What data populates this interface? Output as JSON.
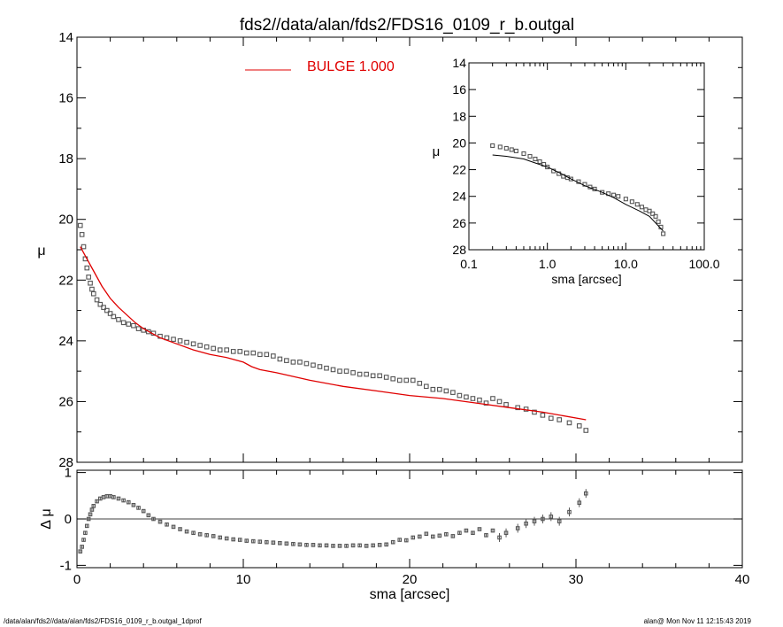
{
  "figure": {
    "title": "fds2//data/alan/fds2/FDS16_0109_r_b.outgal",
    "footer_left": "/data/alan/fds2//data/alan/fds2/FDS16_0109_r_b.outgal_1dprof",
    "footer_right": "alan@  Mon Nov 11 12:15:43 2019"
  },
  "colors": {
    "model": "#e00000",
    "data": "#555555",
    "axis": "#000000",
    "inset_model": "#000000"
  },
  "chart_data": [
    {
      "type": "scatter",
      "id": "main_profile",
      "xlabel": "",
      "ylabel": "μ",
      "xlim": [
        0,
        40
      ],
      "ylim": [
        28,
        14
      ],
      "y_reversed": true,
      "xticks": [
        "0",
        "10",
        "20",
        "30",
        "40"
      ],
      "yticks": [
        "14",
        "16",
        "18",
        "20",
        "22",
        "24",
        "26",
        "28"
      ],
      "legend": {
        "label": "BULGE",
        "value": "1.000",
        "position": "top-center"
      },
      "series": [
        {
          "name": "",
          "kind": "points",
          "x": [
            0.2,
            0.3,
            0.4,
            0.5,
            0.6,
            0.7,
            0.8,
            0.9,
            1.0,
            1.2,
            1.4,
            1.6,
            1.8,
            2.0,
            2.2,
            2.5,
            2.8,
            3.1,
            3.4,
            3.7,
            4.0,
            4.3,
            4.6,
            5.0,
            5.4,
            5.8,
            6.2,
            6.6,
            7.0,
            7.4,
            7.8,
            8.2,
            8.6,
            9.0,
            9.4,
            9.8,
            10.2,
            10.6,
            11.0,
            11.4,
            11.8,
            12.2,
            12.6,
            13.0,
            13.4,
            13.8,
            14.2,
            14.6,
            15.0,
            15.4,
            15.8,
            16.2,
            16.6,
            17.0,
            17.4,
            17.8,
            18.2,
            18.6,
            19.0,
            19.4,
            19.8,
            20.2,
            20.6,
            21.0,
            21.4,
            21.8,
            22.2,
            22.6,
            23.0,
            23.4,
            23.8,
            24.2,
            24.6,
            25.0,
            25.4,
            25.8,
            26.5,
            27.0,
            27.5,
            28.0,
            28.5,
            29.0,
            29.6,
            30.2,
            30.6
          ],
          "y": [
            20.2,
            20.5,
            20.9,
            21.3,
            21.6,
            21.9,
            22.1,
            22.3,
            22.45,
            22.65,
            22.8,
            22.9,
            23.0,
            23.1,
            23.2,
            23.3,
            23.4,
            23.45,
            23.5,
            23.6,
            23.65,
            23.7,
            23.75,
            23.85,
            23.9,
            23.95,
            24.0,
            24.05,
            24.1,
            24.15,
            24.2,
            24.25,
            24.3,
            24.3,
            24.35,
            24.35,
            24.4,
            24.4,
            24.45,
            24.45,
            24.5,
            24.6,
            24.65,
            24.7,
            24.7,
            24.75,
            24.8,
            24.85,
            24.9,
            24.95,
            25.0,
            25.0,
            25.05,
            25.1,
            25.1,
            25.15,
            25.15,
            25.2,
            25.25,
            25.3,
            25.3,
            25.3,
            25.4,
            25.5,
            25.6,
            25.6,
            25.65,
            25.7,
            25.8,
            25.85,
            25.9,
            25.95,
            26.05,
            25.9,
            26.0,
            26.1,
            26.2,
            26.25,
            26.35,
            26.45,
            26.55,
            26.6,
            26.7,
            26.8,
            26.95
          ]
        },
        {
          "name": "BULGE",
          "kind": "line",
          "x": [
            0.2,
            0.5,
            1.0,
            1.5,
            2.0,
            2.5,
            3.0,
            3.5,
            4.0,
            4.5,
            5.0,
            6.0,
            7.0,
            8.0,
            9.0,
            10.0,
            10.5,
            11.0,
            12.0,
            14.0,
            16.0,
            18.0,
            20.0,
            22.0,
            24.0,
            26.0,
            28.0,
            30.6
          ],
          "y": [
            20.9,
            21.2,
            21.7,
            22.2,
            22.6,
            22.9,
            23.15,
            23.4,
            23.6,
            23.75,
            23.9,
            24.1,
            24.3,
            24.45,
            24.55,
            24.7,
            24.85,
            24.95,
            25.05,
            25.3,
            25.5,
            25.65,
            25.8,
            25.9,
            26.05,
            26.2,
            26.35,
            26.6
          ]
        }
      ]
    },
    {
      "type": "scatter",
      "id": "residual",
      "xlabel": "sma [arcsec]",
      "ylabel": "Δ μ",
      "xlim": [
        0,
        40
      ],
      "ylim": [
        -1.05,
        1.05
      ],
      "xticks": [
        "0",
        "10",
        "20",
        "30",
        "40"
      ],
      "yticks": [
        "1",
        "0",
        "-1"
      ],
      "zero_line": true,
      "series": [
        {
          "name": "",
          "kind": "points",
          "x": [
            0.2,
            0.3,
            0.4,
            0.5,
            0.6,
            0.7,
            0.8,
            0.9,
            1.0,
            1.2,
            1.4,
            1.6,
            1.8,
            2.0,
            2.2,
            2.5,
            2.8,
            3.1,
            3.4,
            3.7,
            4.0,
            4.3,
            4.6,
            5.0,
            5.4,
            5.8,
            6.2,
            6.6,
            7.0,
            7.4,
            7.8,
            8.2,
            8.6,
            9.0,
            9.4,
            9.8,
            10.2,
            10.6,
            11.0,
            11.4,
            11.8,
            12.2,
            12.6,
            13.0,
            13.4,
            13.8,
            14.2,
            14.6,
            15.0,
            15.4,
            15.8,
            16.2,
            16.6,
            17.0,
            17.4,
            17.8,
            18.2,
            18.6,
            19.0,
            19.4,
            19.8,
            20.2,
            20.6,
            21.0,
            21.4,
            21.8,
            22.2,
            22.6,
            23.0,
            23.4,
            23.8,
            24.2,
            24.6,
            25.0,
            25.4,
            25.8,
            26.5,
            27.0,
            27.5,
            28.0,
            28.5,
            29.0,
            29.6,
            30.2,
            30.6
          ],
          "y": [
            -0.7,
            -0.6,
            -0.45,
            -0.3,
            -0.15,
            0.0,
            0.1,
            0.2,
            0.28,
            0.38,
            0.44,
            0.47,
            0.49,
            0.49,
            0.47,
            0.44,
            0.4,
            0.36,
            0.3,
            0.24,
            0.17,
            0.08,
            0.0,
            -0.06,
            -0.12,
            -0.17,
            -0.22,
            -0.27,
            -0.3,
            -0.33,
            -0.35,
            -0.37,
            -0.4,
            -0.42,
            -0.44,
            -0.45,
            -0.47,
            -0.48,
            -0.49,
            -0.5,
            -0.51,
            -0.52,
            -0.53,
            -0.54,
            -0.55,
            -0.56,
            -0.56,
            -0.57,
            -0.57,
            -0.58,
            -0.58,
            -0.58,
            -0.57,
            -0.57,
            -0.58,
            -0.57,
            -0.56,
            -0.55,
            -0.5,
            -0.45,
            -0.46,
            -0.4,
            -0.38,
            -0.32,
            -0.38,
            -0.36,
            -0.33,
            -0.37,
            -0.3,
            -0.25,
            -0.3,
            -0.22,
            -0.35,
            -0.25,
            -0.4,
            -0.3,
            -0.2,
            -0.1,
            -0.05,
            0.0,
            0.05,
            -0.05,
            0.15,
            0.35,
            0.55
          ]
        }
      ]
    },
    {
      "type": "scatter",
      "id": "inset_log_profile",
      "xlabel": "sma [arcsec]",
      "ylabel": "μ",
      "xscale": "log",
      "xlim": [
        0.1,
        100
      ],
      "ylim": [
        28,
        14
      ],
      "y_reversed": true,
      "xticks": [
        "0.1",
        "1.0",
        "10.0",
        "100.0"
      ],
      "yticks": [
        "14",
        "16",
        "18",
        "20",
        "22",
        "24",
        "26",
        "28"
      ],
      "series": [
        {
          "name": "",
          "kind": "points",
          "x": [
            0.2,
            0.25,
            0.3,
            0.35,
            0.4,
            0.5,
            0.6,
            0.7,
            0.8,
            0.9,
            1.0,
            1.2,
            1.4,
            1.6,
            1.8,
            2.0,
            2.5,
            3.0,
            3.5,
            4.0,
            5.0,
            6.0,
            7.0,
            8.0,
            10.0,
            12.0,
            14.0,
            16.0,
            18.0,
            20.0,
            22.0,
            24.0,
            26.0,
            28.0,
            30.0
          ],
          "y": [
            20.2,
            20.3,
            20.4,
            20.5,
            20.6,
            20.8,
            21.0,
            21.2,
            21.4,
            21.6,
            21.8,
            22.1,
            22.3,
            22.5,
            22.6,
            22.7,
            22.9,
            23.1,
            23.3,
            23.45,
            23.7,
            23.8,
            23.9,
            24.0,
            24.2,
            24.4,
            24.6,
            24.8,
            25.0,
            25.1,
            25.3,
            25.5,
            25.9,
            26.3,
            26.8
          ]
        },
        {
          "name": "",
          "kind": "line",
          "x": [
            0.2,
            0.3,
            0.5,
            0.7,
            1.0,
            1.5,
            2.0,
            3.0,
            5.0,
            7.0,
            10.0,
            15.0,
            20.0,
            30.0
          ],
          "y": [
            20.9,
            21.0,
            21.2,
            21.5,
            21.8,
            22.3,
            22.7,
            23.2,
            23.7,
            24.1,
            24.6,
            25.1,
            25.5,
            26.6
          ]
        }
      ]
    }
  ]
}
